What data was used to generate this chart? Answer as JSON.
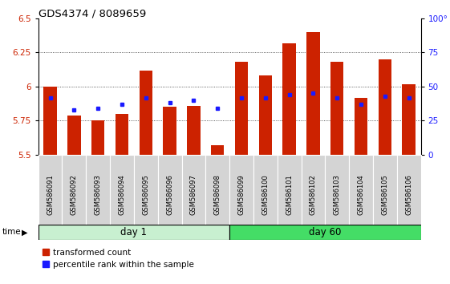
{
  "title": "GDS4374 / 8089659",
  "samples": [
    "GSM586091",
    "GSM586092",
    "GSM586093",
    "GSM586094",
    "GSM586095",
    "GSM586096",
    "GSM586097",
    "GSM586098",
    "GSM586099",
    "GSM586100",
    "GSM586101",
    "GSM586102",
    "GSM586103",
    "GSM586104",
    "GSM586105",
    "GSM586106"
  ],
  "red_bar_heights": [
    6.0,
    5.79,
    5.75,
    5.8,
    6.12,
    5.85,
    5.86,
    5.57,
    6.18,
    6.08,
    6.32,
    6.4,
    6.18,
    5.92,
    6.2,
    6.02
  ],
  "blue_dot_values": [
    5.92,
    5.83,
    5.84,
    5.87,
    5.92,
    5.88,
    5.9,
    5.84,
    5.92,
    5.92,
    5.94,
    5.95,
    5.92,
    5.87,
    5.93,
    5.92
  ],
  "ymin": 5.5,
  "ymax": 6.5,
  "yticks": [
    5.5,
    5.75,
    6.0,
    6.25,
    6.5
  ],
  "right_yticks": [
    0,
    25,
    50,
    75,
    100
  ],
  "day1_count": 8,
  "day60_count": 8,
  "bar_color": "#cc2200",
  "dot_color": "#1a1aff",
  "bar_width": 0.55,
  "day1_label": "day 1",
  "day60_label": "day 60",
  "day1_bg": "#c8f0d0",
  "day60_bg": "#44dd66",
  "left_tick_color": "#cc2200",
  "right_tick_color": "#1a1aff",
  "legend_red_label": "transformed count",
  "legend_blue_label": "percentile rank within the sample",
  "tick_bg": "#d4d4d4",
  "grid_linestyle": "dotted",
  "grid_color": "#333333"
}
